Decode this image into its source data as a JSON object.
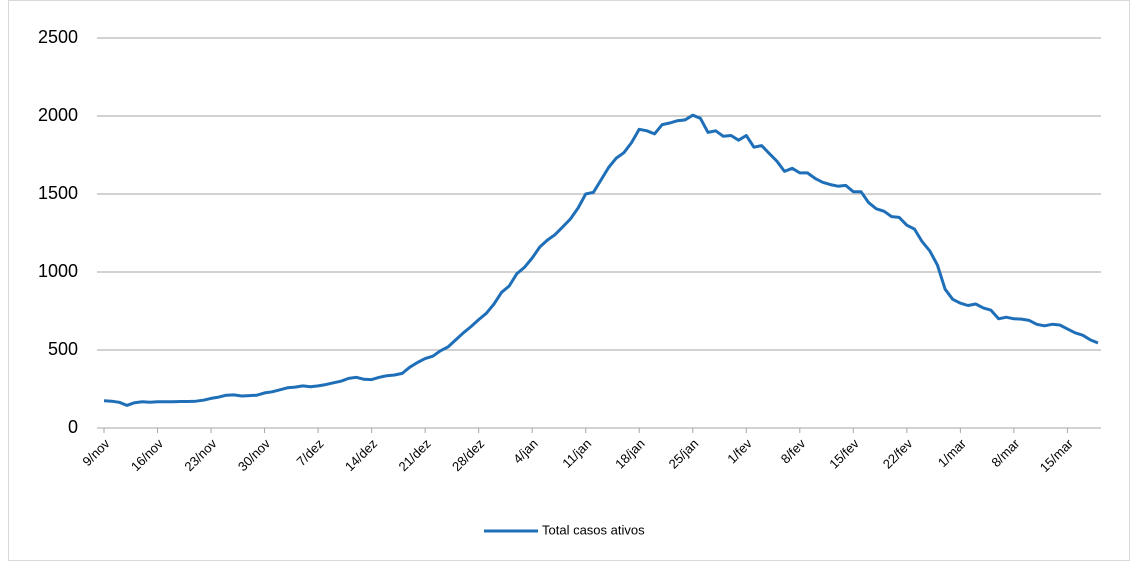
{
  "chart_data": {
    "type": "line",
    "categories": [
      "9/nov",
      null,
      null,
      null,
      null,
      null,
      null,
      "16/nov",
      null,
      null,
      null,
      null,
      null,
      null,
      "23/nov",
      null,
      null,
      null,
      null,
      null,
      null,
      "30/nov",
      null,
      null,
      null,
      null,
      null,
      null,
      "7/dez",
      null,
      null,
      null,
      null,
      null,
      null,
      "14/dez",
      null,
      null,
      null,
      null,
      null,
      null,
      "21/dez",
      null,
      null,
      null,
      null,
      null,
      null,
      "28/dez",
      null,
      null,
      null,
      null,
      null,
      null,
      "4/jan",
      null,
      null,
      null,
      null,
      null,
      null,
      "11/jan",
      null,
      null,
      null,
      null,
      null,
      null,
      "18/jan",
      null,
      null,
      null,
      null,
      null,
      null,
      "25/jan",
      null,
      null,
      null,
      null,
      null,
      null,
      "1/fev",
      null,
      null,
      null,
      null,
      null,
      null,
      "8/fev",
      null,
      null,
      null,
      null,
      null,
      null,
      "15/fev",
      null,
      null,
      null,
      null,
      null,
      null,
      "22/fev",
      null,
      null,
      null,
      null,
      null,
      null,
      "1/mar",
      null,
      null,
      null,
      null,
      null,
      null,
      "8/mar",
      null,
      null,
      null,
      null,
      null,
      null,
      "15/mar",
      null,
      null,
      null,
      null
    ],
    "series": [
      {
        "name": "Total casos ativos",
        "color": "#1f6fb8",
        "values": [
          175,
          172,
          165,
          145,
          162,
          168,
          165,
          168,
          168,
          168,
          170,
          170,
          172,
          178,
          190,
          198,
          210,
          212,
          205,
          208,
          210,
          225,
          232,
          245,
          258,
          262,
          270,
          265,
          270,
          278,
          290,
          300,
          318,
          325,
          312,
          310,
          325,
          335,
          340,
          350,
          390,
          420,
          445,
          460,
          495,
          520,
          565,
          610,
          650,
          695,
          735,
          795,
          870,
          910,
          990,
          1030,
          1090,
          1160,
          1205,
          1240,
          1290,
          1340,
          1410,
          1500,
          1510,
          1590,
          1670,
          1730,
          1765,
          1830,
          1915,
          1905,
          1885,
          1945,
          1955,
          1970,
          1975,
          2005,
          1985,
          1895,
          1905,
          1870,
          1875,
          1845,
          1875,
          1800,
          1810,
          1760,
          1710,
          1645,
          1665,
          1635,
          1635,
          1600,
          1575,
          1560,
          1550,
          1555,
          1515,
          1515,
          1445,
          1405,
          1390,
          1355,
          1350,
          1300,
          1275,
          1195,
          1135,
          1045,
          890,
          825,
          800,
          785,
          795,
          770,
          755,
          700,
          710,
          700,
          698,
          690,
          665,
          655,
          665,
          660,
          635,
          610,
          595,
          565,
          545
        ]
      }
    ],
    "ylim": [
      0,
      2500
    ],
    "yticks": [
      0,
      500,
      1000,
      1500,
      2000,
      2500
    ],
    "grid": true,
    "legend": "bottom"
  }
}
